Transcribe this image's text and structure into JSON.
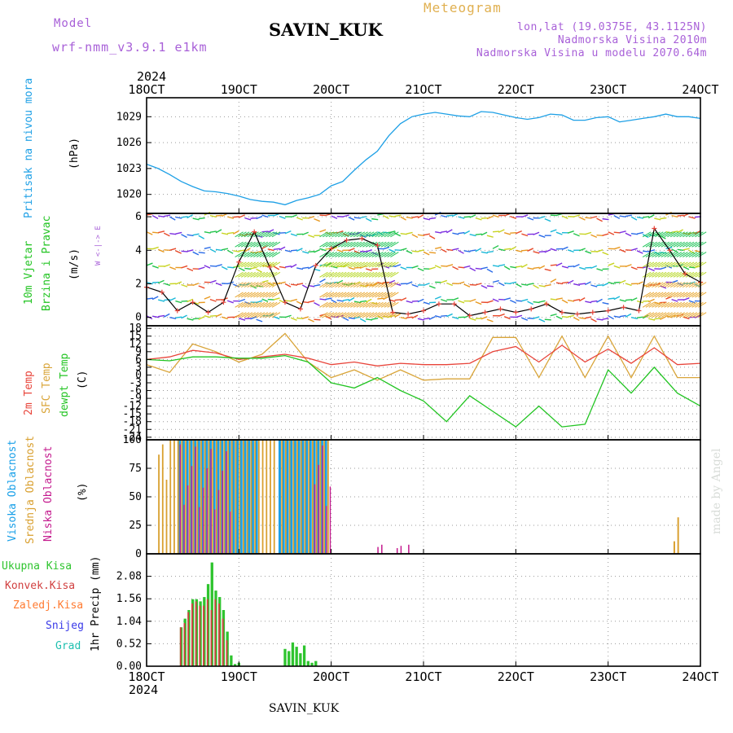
{
  "header": {
    "model_label": "Model",
    "model_name": "wrf-nmm_v3.9.1 e1km",
    "station": "SAVIN_KUK",
    "meteogram_label": "Meteogram",
    "lonlat": "lon,lat (19.0375E, 43.1125N)",
    "elevation": "Nadmorska Visina 2010m",
    "model_elevation": "Nadmorska Visina u modelu 2070.64m",
    "year_top": "2024",
    "year_bottom": "2024",
    "footer_station": "SAVIN_KUK",
    "credit": "made by Angel"
  },
  "x_axis": {
    "labels": [
      "18OCT",
      "19OCT",
      "20OCT",
      "21OCT",
      "22OCT",
      "23OCT",
      "24OCT"
    ],
    "range_hours": [
      0,
      144
    ]
  },
  "panels": {
    "pressure": {
      "label_main": "Pritisak na nivou mora",
      "unit": "(hPa)",
      "ticks": [
        "1029",
        "1026",
        "1023",
        "1020"
      ]
    },
    "wind": {
      "label_line1": "10m Vjetar",
      "label_line2": "Brzina i Pravac",
      "unit": "(m/s)",
      "ticks": [
        "6",
        "4",
        "2",
        "0"
      ],
      "compass": "W <-|-> E"
    },
    "temp": {
      "label_1": "2m Temp",
      "label_2": "SFC Temp",
      "label_3": "dewpt Temp",
      "unit": "(C)",
      "ticks": [
        "18",
        "15",
        "12",
        "9",
        "6",
        "3",
        "0",
        "-3",
        "-6",
        "-9",
        "-12",
        "-15",
        "-18",
        "-21",
        "-24"
      ]
    },
    "cloud": {
      "label_1": "Visoka Oblacnost",
      "label_2": "Srednja Oblacnost",
      "label_3": "Niska Oblacnost",
      "unit": "(%)",
      "ticks": [
        "100",
        "75",
        "50",
        "25",
        "0"
      ]
    },
    "precip": {
      "legend": [
        "Ukupna Kisa",
        "Konvek.Kisa",
        "Zaledj.Kisa",
        "Snijeg",
        "Grad"
      ],
      "unit": "1hr Precip (mm)",
      "ticks": [
        "2.08",
        "1.56",
        "1.04",
        "0.52",
        "0.00"
      ]
    }
  },
  "colors": {
    "pressure": "#1ea0e6",
    "t2m": "#e8443a",
    "sfc": "#d9a53a",
    "dew": "#22c422",
    "high_cloud": "#19a0e8",
    "mid_cloud": "#d9a030",
    "low_cloud": "#c41a8e",
    "rain_total": "#2ec42e",
    "rain_conv": "#d14040",
    "frz": "#ff7a30",
    "snow": "#3a3ae8",
    "hail": "#20c0b0",
    "label_purple": "#a860d8",
    "label_gold": "#e0b050"
  },
  "chart_data": [
    {
      "type": "line",
      "title": "Pritisak na nivou mora",
      "ylabel": "(hPa)",
      "ylim": [
        1017.8,
        1031.2
      ],
      "series": [
        {
          "x": [
            0,
            3,
            6,
            9,
            12,
            15,
            18,
            21,
            24,
            27,
            30,
            33,
            36,
            39,
            42,
            45,
            48,
            51,
            54,
            57,
            60,
            63,
            66,
            69,
            72,
            75,
            78,
            81,
            84,
            87,
            90,
            93,
            96,
            99,
            102,
            105,
            108,
            111,
            114,
            117,
            120,
            123,
            126,
            129,
            132,
            135,
            138,
            141,
            144
          ],
          "y": [
            1023.5,
            1023,
            1022.3,
            1021.5,
            1020.9,
            1020.4,
            1020.3,
            1020.1,
            1019.8,
            1019.4,
            1019.2,
            1019.1,
            1018.8,
            1019.3,
            1019.6,
            1020,
            1021,
            1021.5,
            1022.8,
            1024,
            1025,
            1026.8,
            1028.2,
            1029,
            1029.3,
            1029.5,
            1029.3,
            1029.1,
            1029,
            1029.6,
            1029.5,
            1029.2,
            1028.9,
            1028.7,
            1028.9,
            1029.3,
            1029.2,
            1028.6,
            1028.6,
            1028.9,
            1029,
            1028.4,
            1028.6,
            1028.8,
            1029,
            1029.3,
            1029,
            1029,
            1028.8
          ]
        }
      ]
    },
    {
      "type": "line",
      "title": "10m Vjetar Brzina i Pravac",
      "ylabel": "(m/s)",
      "ylim": [
        -0.5,
        6.2
      ],
      "series": [
        {
          "x": [
            0,
            4,
            8,
            12,
            16,
            20,
            24,
            28,
            32,
            36,
            40,
            44,
            48,
            52,
            56,
            60,
            64,
            68,
            72,
            76,
            80,
            84,
            88,
            92,
            96,
            100,
            104,
            108,
            112,
            116,
            120,
            124,
            128,
            132,
            136,
            140,
            144
          ],
          "y": [
            1.8,
            1.5,
            0.4,
            0.9,
            0.3,
            0.9,
            3.3,
            5.1,
            3,
            0.9,
            0.5,
            3.1,
            4.1,
            4.6,
            4.7,
            4.3,
            0.3,
            0.2,
            0.4,
            0.8,
            0.8,
            0.1,
            0.3,
            0.5,
            0.3,
            0.5,
            0.8,
            0.3,
            0.2,
            0.3,
            0.4,
            0.6,
            0.4,
            5.3,
            4,
            2.6,
            2.1
          ]
        }
      ]
    },
    {
      "type": "line",
      "title": "Temp",
      "ylabel": "(C)",
      "ylim": [
        -25,
        19
      ],
      "series": [
        {
          "name": "2m Temp",
          "x": [
            0,
            6,
            12,
            18,
            24,
            30,
            36,
            42,
            48,
            54,
            60,
            66,
            72,
            78,
            84,
            90,
            96,
            102,
            108,
            114,
            120,
            126,
            132,
            138,
            144
          ],
          "y": [
            6,
            7,
            9.5,
            8.5,
            6,
            7,
            8,
            6.5,
            4,
            5,
            3.5,
            4.5,
            4,
            4,
            4.5,
            9,
            11,
            5,
            11.5,
            5,
            10,
            4.5,
            10.5,
            4,
            4.5
          ]
        },
        {
          "name": "SFC Temp",
          "x": [
            0,
            6,
            12,
            18,
            24,
            30,
            36,
            42,
            48,
            54,
            60,
            66,
            72,
            78,
            84,
            90,
            96,
            102,
            108,
            114,
            120,
            126,
            132,
            138,
            144
          ],
          "y": [
            4,
            1,
            12,
            9,
            5,
            8,
            16,
            5,
            -1,
            2,
            -2,
            2,
            -2,
            -1.5,
            -1.5,
            14.5,
            14.5,
            -1,
            15,
            -1,
            15,
            -1,
            15,
            -1,
            -1
          ]
        },
        {
          "name": "dewpt Temp",
          "x": [
            0,
            6,
            12,
            18,
            24,
            30,
            36,
            42,
            48,
            54,
            60,
            66,
            72,
            78,
            84,
            90,
            96,
            102,
            108,
            114,
            120,
            126,
            132,
            138,
            144
          ],
          "y": [
            6,
            5.5,
            7,
            7,
            6.5,
            6.5,
            7.5,
            5,
            -3,
            -5,
            -1,
            -6,
            -10,
            -18,
            -8,
            -14,
            -20,
            -12,
            -20,
            -19,
            2,
            -7,
            3,
            -7,
            -12
          ]
        }
      ]
    },
    {
      "type": "bar",
      "title": "Oblacnost",
      "ylabel": "(%)",
      "ylim": [
        0,
        100
      ],
      "x_range": [
        0,
        144
      ],
      "high_windows": [
        [
          8,
          29
        ],
        [
          34,
          47
        ]
      ],
      "mid_windows": [
        [
          3,
          8
        ],
        [
          8,
          34
        ],
        [
          35,
          48
        ]
      ],
      "low_windows": [
        [
          8,
          22
        ],
        [
          43,
          48
        ]
      ],
      "sparse_low": [
        {
          "x": 60,
          "y": 6
        },
        {
          "x": 61,
          "y": 8
        },
        {
          "x": 65,
          "y": 5
        },
        {
          "x": 66,
          "y": 7
        },
        {
          "x": 68,
          "y": 8
        }
      ],
      "late_mid": [
        {
          "x": 137,
          "y": 11
        },
        {
          "x": 138,
          "y": 32
        }
      ]
    },
    {
      "type": "bar",
      "title": "1hr Precip",
      "ylabel": "1hr Precip (mm)",
      "ylim": [
        0,
        2.6
      ],
      "series": [
        {
          "name": "Ukupna Kisa",
          "x": [
            9,
            10,
            11,
            12,
            13,
            14,
            15,
            16,
            17,
            18,
            19,
            20,
            21,
            22,
            23,
            24,
            36,
            37,
            38,
            39,
            40,
            41,
            42,
            43,
            44
          ],
          "y": [
            0.9,
            1.1,
            1.3,
            1.55,
            1.55,
            1.5,
            1.6,
            1.9,
            2.4,
            1.75,
            1.6,
            1.3,
            0.8,
            0.25,
            0.05,
            0.08,
            0.4,
            0.35,
            0.55,
            0.45,
            0.3,
            0.48,
            0.12,
            0.08,
            0.12
          ]
        },
        {
          "name": "Konvek.Kisa",
          "x": [
            9,
            10,
            11,
            12,
            13,
            14,
            15,
            16,
            17,
            18,
            19,
            20,
            21
          ],
          "y": [
            0.9,
            1.0,
            1.25,
            1.45,
            1.5,
            1.4,
            1.4,
            1.55,
            1.3,
            1.55,
            1.45,
            1.1,
            0.6
          ]
        }
      ]
    }
  ]
}
